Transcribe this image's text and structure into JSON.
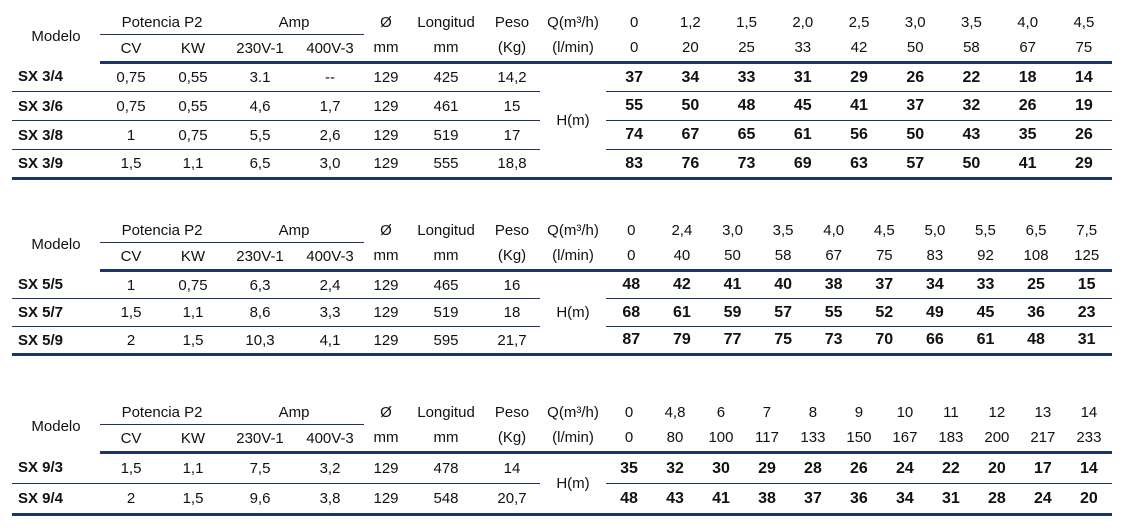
{
  "tables": [
    {
      "headers": {
        "model": "Modelo",
        "power": "Potencia P2",
        "amp": "Amp",
        "diameter": "Ø",
        "length": "Longitud",
        "weight": "Peso",
        "flow": "Q(m³/h)",
        "units": [
          "CV",
          "KW",
          "230V-1",
          "400V-3",
          "mm",
          "mm",
          "(Kg)",
          "(l/min)"
        ]
      },
      "flow_m3h": [
        "0",
        "1,2",
        "1,5",
        "2,0",
        "2,5",
        "3,0",
        "3,5",
        "4,0",
        "4,5"
      ],
      "flow_lmin": [
        "0",
        "20",
        "25",
        "33",
        "42",
        "50",
        "58",
        "67",
        "75"
      ],
      "head_label": "H(m)",
      "rows": [
        {
          "model": "SX 3/4",
          "specs": [
            "0,75",
            "0,55",
            "3.1",
            "--",
            "129",
            "425",
            "14,2"
          ],
          "head": [
            "37",
            "34",
            "33",
            "31",
            "29",
            "26",
            "22",
            "18",
            "14"
          ]
        },
        {
          "model": "SX 3/6",
          "specs": [
            "0,75",
            "0,55",
            "4,6",
            "1,7",
            "129",
            "461",
            "15"
          ],
          "head": [
            "55",
            "50",
            "48",
            "45",
            "41",
            "37",
            "32",
            "26",
            "19"
          ]
        },
        {
          "model": "SX 3/8",
          "specs": [
            "1",
            "0,75",
            "5,5",
            "2,6",
            "129",
            "519",
            "17"
          ],
          "head": [
            "74",
            "67",
            "65",
            "61",
            "56",
            "50",
            "43",
            "35",
            "26"
          ]
        },
        {
          "model": "SX 3/9",
          "specs": [
            "1,5",
            "1,1",
            "6,5",
            "3,0",
            "129",
            "555",
            "18,8"
          ],
          "head": [
            "83",
            "76",
            "73",
            "69",
            "63",
            "57",
            "50",
            "41",
            "29"
          ]
        }
      ]
    },
    {
      "headers": {
        "model": "Modelo",
        "power": "Potencia P2",
        "amp": "Amp",
        "diameter": "Ø",
        "length": "Longitud",
        "weight": "Peso",
        "flow": "Q(m³/h)",
        "units": [
          "CV",
          "KW",
          "230V-1",
          "400V-3",
          "mm",
          "mm",
          "(Kg)",
          "(l/min)"
        ]
      },
      "flow_m3h": [
        "0",
        "2,4",
        "3,0",
        "3,5",
        "4,0",
        "4,5",
        "5,0",
        "5,5",
        "6,5",
        "7,5"
      ],
      "flow_lmin": [
        "0",
        "40",
        "50",
        "58",
        "67",
        "75",
        "83",
        "92",
        "108",
        "125"
      ],
      "head_label": "H(m)",
      "rows": [
        {
          "model": "SX 5/5",
          "specs": [
            "1",
            "0,75",
            "6,3",
            "2,4",
            "129",
            "465",
            "16"
          ],
          "head": [
            "48",
            "42",
            "41",
            "40",
            "38",
            "37",
            "34",
            "33",
            "25",
            "15"
          ]
        },
        {
          "model": "SX 5/7",
          "specs": [
            "1,5",
            "1,1",
            "8,6",
            "3,3",
            "129",
            "519",
            "18"
          ],
          "head": [
            "68",
            "61",
            "59",
            "57",
            "55",
            "52",
            "49",
            "45",
            "36",
            "23"
          ]
        },
        {
          "model": "SX 5/9",
          "specs": [
            "2",
            "1,5",
            "10,3",
            "4,1",
            "129",
            "595",
            "21,7"
          ],
          "head": [
            "87",
            "79",
            "77",
            "75",
            "73",
            "70",
            "66",
            "61",
            "48",
            "31"
          ]
        }
      ]
    },
    {
      "headers": {
        "model": "Modelo",
        "power": "Potencia P2",
        "amp": "Amp",
        "diameter": "Ø",
        "length": "Longitud",
        "weight": "Peso",
        "flow": "Q(m³/h)",
        "units": [
          "CV",
          "KW",
          "230V-1",
          "400V-3",
          "mm",
          "mm",
          "(Kg)",
          "(l/min)"
        ]
      },
      "flow_m3h": [
        "0",
        "4,8",
        "6",
        "7",
        "8",
        "9",
        "10",
        "11",
        "12",
        "13",
        "14"
      ],
      "flow_lmin": [
        "0",
        "80",
        "100",
        "117",
        "133",
        "150",
        "167",
        "183",
        "200",
        "217",
        "233"
      ],
      "head_label": "H(m)",
      "rows": [
        {
          "model": "SX 9/3",
          "specs": [
            "1,5",
            "1,1",
            "7,5",
            "3,2",
            "129",
            "478",
            "14"
          ],
          "head": [
            "35",
            "32",
            "30",
            "29",
            "28",
            "26",
            "24",
            "22",
            "20",
            "17",
            "14"
          ]
        },
        {
          "model": "SX 9/4",
          "specs": [
            "2",
            "1,5",
            "9,6",
            "3,8",
            "129",
            "548",
            "20,7"
          ],
          "head": [
            "48",
            "43",
            "41",
            "38",
            "37",
            "36",
            "34",
            "31",
            "28",
            "24",
            "20"
          ]
        }
      ]
    }
  ]
}
